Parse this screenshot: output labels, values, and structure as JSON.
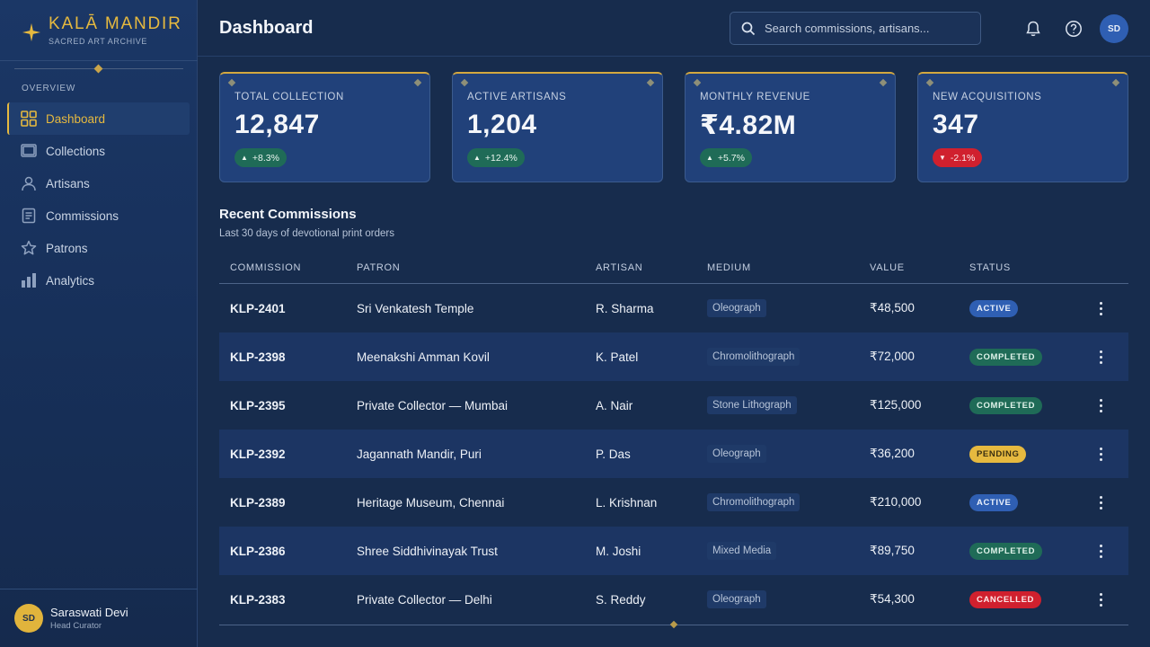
{
  "app": {
    "brand_name": "KALĀ MANDIR",
    "brand_tagline": "SACRED ART ARCHIVE",
    "page_title": "Dashboard"
  },
  "sidebar": {
    "section_heading": "OVERVIEW",
    "items": [
      {
        "label": "Dashboard",
        "icon": "grid-icon",
        "active": true
      },
      {
        "label": "Collections",
        "icon": "frame-icon",
        "active": false
      },
      {
        "label": "Artisans",
        "icon": "user-icon",
        "active": false
      },
      {
        "label": "Commissions",
        "icon": "document-icon",
        "active": false
      },
      {
        "label": "Patrons",
        "icon": "star-icon",
        "active": false
      },
      {
        "label": "Analytics",
        "icon": "bar-chart-icon",
        "active": false
      }
    ],
    "user": {
      "initials": "SD",
      "name": "Saraswati Devi",
      "role": "Head Curator"
    }
  },
  "header": {
    "search_placeholder": "Search commissions, artisans...",
    "avatar_initials": "SD"
  },
  "stats": [
    {
      "label": "TOTAL COLLECTION",
      "value": "12,847",
      "delta": "+8.3%",
      "trend": "up"
    },
    {
      "label": "ACTIVE ARTISANS",
      "value": "1,204",
      "delta": "+12.4%",
      "trend": "up"
    },
    {
      "label": "MONTHLY REVENUE",
      "value": "₹4.82M",
      "delta": "+5.7%",
      "trend": "up"
    },
    {
      "label": "NEW ACQUISITIONS",
      "value": "347",
      "delta": "-2.1%",
      "trend": "down"
    }
  ],
  "commissions": {
    "title": "Recent Commissions",
    "subtitle": "Last 30 days of devotional print orders",
    "columns": [
      "COMMISSION",
      "PATRON",
      "ARTISAN",
      "MEDIUM",
      "VALUE",
      "STATUS"
    ],
    "rows": [
      {
        "id": "KLP-2401",
        "patron": "Sri Venkatesh Temple",
        "artisan": "R. Sharma",
        "medium": "Oleograph",
        "value": "₹48,500",
        "status": "ACTIVE"
      },
      {
        "id": "KLP-2398",
        "patron": "Meenakshi Amman Kovil",
        "artisan": "K. Patel",
        "medium": "Chromolithograph",
        "value": "₹72,000",
        "status": "COMPLETED"
      },
      {
        "id": "KLP-2395",
        "patron": "Private Collector — Mumbai",
        "artisan": "A. Nair",
        "medium": "Stone Lithograph",
        "value": "₹125,000",
        "status": "COMPLETED"
      },
      {
        "id": "KLP-2392",
        "patron": "Jagannath Mandir, Puri",
        "artisan": "P. Das",
        "medium": "Oleograph",
        "value": "₹36,200",
        "status": "PENDING"
      },
      {
        "id": "KLP-2389",
        "patron": "Heritage Museum, Chennai",
        "artisan": "L. Krishnan",
        "medium": "Chromolithograph",
        "value": "₹210,000",
        "status": "ACTIVE"
      },
      {
        "id": "KLP-2386",
        "patron": "Shree Siddhivinayak Trust",
        "artisan": "M. Joshi",
        "medium": "Mixed Media",
        "value": "₹89,750",
        "status": "COMPLETED"
      },
      {
        "id": "KLP-2383",
        "patron": "Private Collector — Delhi",
        "artisan": "S. Reddy",
        "medium": "Oleograph",
        "value": "₹54,300",
        "status": "CANCELLED"
      }
    ]
  },
  "colors": {
    "gold": "#e6b93f",
    "navy": "#172c4d",
    "active_blue": "#2f5fb3",
    "completed_green": "#1f6b57",
    "cancelled_red": "#d0202e"
  }
}
